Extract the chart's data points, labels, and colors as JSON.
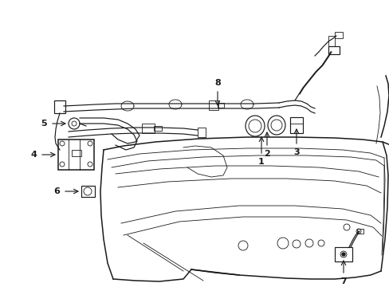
{
  "background_color": "#ffffff",
  "line_color": "#1a1a1a",
  "figsize": [
    4.89,
    3.6
  ],
  "dpi": 100,
  "lw_main": 1.1,
  "lw_wire": 0.85,
  "lw_thin": 0.6,
  "fontsize": 8
}
